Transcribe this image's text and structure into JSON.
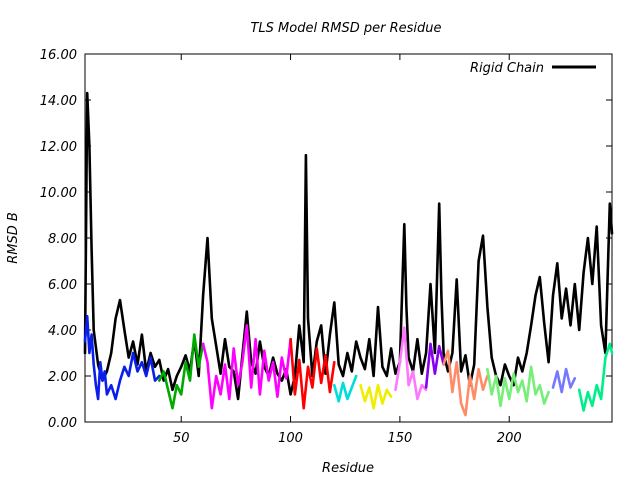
{
  "chart_data": {
    "type": "line",
    "title": "TLS Model RMSD per Residue",
    "xlabel": "Residue",
    "ylabel": "RMSD B",
    "xlim": [
      6,
      247
    ],
    "ylim": [
      0,
      16
    ],
    "xticks": [
      50,
      100,
      150,
      200
    ],
    "yticks": [
      "0.00",
      "2.00",
      "4.00",
      "6.00",
      "8.00",
      "10.00",
      "12.00",
      "14.00",
      "16.00"
    ],
    "grid": false,
    "legend": {
      "position": "top-right",
      "entries": [
        "Rigid Chain"
      ]
    },
    "series": [
      {
        "name": "Rigid Chain",
        "color": "#000000",
        "x": [
          6,
          7,
          8,
          9,
          10,
          12,
          14,
          16,
          18,
          20,
          22,
          24,
          26,
          28,
          30,
          32,
          34,
          36,
          38,
          40,
          42,
          44,
          46,
          48,
          50,
          52,
          54,
          56,
          58,
          60,
          62,
          64,
          66,
          68,
          70,
          72,
          74,
          76,
          78,
          80,
          82,
          84,
          86,
          88,
          90,
          92,
          94,
          96,
          98,
          100,
          102,
          104,
          106,
          107,
          108,
          110,
          112,
          114,
          116,
          118,
          120,
          122,
          124,
          126,
          128,
          130,
          132,
          134,
          136,
          138,
          140,
          142,
          144,
          146,
          148,
          150,
          152,
          153,
          154,
          156,
          158,
          160,
          162,
          164,
          166,
          168,
          169,
          170,
          172,
          174,
          176,
          178,
          180,
          182,
          184,
          186,
          188,
          190,
          192,
          194,
          196,
          198,
          200,
          202,
          204,
          206,
          208,
          210,
          212,
          214,
          216,
          218,
          220,
          222,
          224,
          226,
          228,
          230,
          232,
          234,
          236,
          238,
          240,
          242,
          244,
          246,
          247
        ],
        "y": [
          3.0,
          14.3,
          12.0,
          7.5,
          4.0,
          2.5,
          1.8,
          2.2,
          3.0,
          4.5,
          5.3,
          4.0,
          2.8,
          3.5,
          2.5,
          3.8,
          2.2,
          3.0,
          2.4,
          2.7,
          1.8,
          2.3,
          1.4,
          2.0,
          2.4,
          2.9,
          2.2,
          3.6,
          2.0,
          5.5,
          8.0,
          4.5,
          3.3,
          2.1,
          3.6,
          2.4,
          2.2,
          1.0,
          2.9,
          4.8,
          2.6,
          2.1,
          3.5,
          2.4,
          2.0,
          2.8,
          2.1,
          1.8,
          2.3,
          1.2,
          2.0,
          4.2,
          2.6,
          11.6,
          4.5,
          2.0,
          3.5,
          4.2,
          2.1,
          3.8,
          5.2,
          2.5,
          2.0,
          3.0,
          2.2,
          3.5,
          2.8,
          2.3,
          3.6,
          2.0,
          5.0,
          2.4,
          2.0,
          3.2,
          2.1,
          2.6,
          8.6,
          5.0,
          2.8,
          2.2,
          3.6,
          2.1,
          3.0,
          6.0,
          3.0,
          9.5,
          5.5,
          3.0,
          2.2,
          3.0,
          6.2,
          2.2,
          2.9,
          1.6,
          2.5,
          7.0,
          8.1,
          5.0,
          2.8,
          2.0,
          1.6,
          2.5,
          2.0,
          1.6,
          2.8,
          2.2,
          3.0,
          4.2,
          5.5,
          6.3,
          4.3,
          2.6,
          5.5,
          6.9,
          4.5,
          5.8,
          4.2,
          6.0,
          4.0,
          6.5,
          8.0,
          6.0,
          8.5,
          4.2,
          3.0,
          9.5,
          8.2
        ]
      },
      {
        "name": "",
        "color": "#0a1fe8",
        "x": [
          6,
          7,
          8,
          9,
          10,
          11,
          12,
          13,
          14,
          15,
          16,
          18,
          20,
          22,
          24,
          26,
          28,
          30,
          32,
          34,
          36,
          38,
          40
        ],
        "y": [
          3.5,
          4.6,
          3.0,
          3.8,
          2.5,
          1.6,
          1.0,
          2.6,
          1.8,
          2.2,
          1.2,
          1.6,
          1.0,
          1.8,
          2.4,
          2.0,
          3.0,
          2.2,
          2.6,
          2.0,
          2.8,
          1.8,
          2.0
        ]
      },
      {
        "name": "",
        "color": "#00aa00",
        "x": [
          40,
          42,
          44,
          46,
          48,
          50,
          52,
          54,
          56,
          58,
          60
        ],
        "y": [
          1.8,
          2.2,
          1.4,
          0.6,
          1.6,
          1.2,
          2.6,
          1.8,
          3.8,
          2.4,
          3.4
        ]
      },
      {
        "name": "",
        "color": "#ff00ff",
        "x": [
          60,
          62,
          64,
          66,
          68,
          70,
          72,
          74,
          76,
          78,
          80,
          82,
          84,
          86,
          88,
          90,
          92,
          94,
          96,
          98,
          100
        ],
        "y": [
          3.4,
          2.6,
          0.6,
          2.0,
          1.2,
          2.5,
          1.0,
          3.2,
          1.6,
          2.6,
          4.2,
          1.5,
          3.6,
          1.2,
          3.1,
          1.8,
          2.6,
          1.1,
          2.8,
          1.9,
          3.6
        ]
      },
      {
        "name": "",
        "color": "#ff0000",
        "x": [
          100,
          102,
          104,
          106,
          108,
          110,
          112,
          114,
          116,
          118,
          120
        ],
        "y": [
          3.6,
          1.2,
          2.7,
          0.6,
          2.4,
          1.5,
          3.2,
          1.7,
          2.9,
          1.3,
          2.6
        ]
      },
      {
        "name": "",
        "color": "#00dddd",
        "x": [
          120,
          122,
          124,
          126,
          128,
          130
        ],
        "y": [
          1.6,
          0.9,
          1.7,
          1.0,
          1.5,
          2.0
        ]
      },
      {
        "name": "",
        "color": "#eeee00",
        "x": [
          132,
          134,
          136,
          138,
          140,
          142,
          144,
          146
        ],
        "y": [
          1.6,
          0.9,
          1.5,
          0.6,
          1.6,
          0.8,
          1.4,
          1.1
        ]
      },
      {
        "name": "",
        "color": "#ff77ff",
        "x": [
          148,
          150,
          152,
          154,
          156,
          158,
          160,
          162
        ],
        "y": [
          1.4,
          2.6,
          4.1,
          1.6,
          2.2,
          1.0,
          1.6,
          1.4
        ]
      },
      {
        "name": "",
        "color": "#8800ee",
        "x": [
          162,
          164,
          166,
          168,
          170
        ],
        "y": [
          1.5,
          3.4,
          2.1,
          3.3,
          2.5
        ]
      },
      {
        "name": "",
        "color": "#ff8c69",
        "x": [
          170,
          172,
          174,
          176,
          178,
          180,
          182,
          184,
          186,
          188,
          190
        ],
        "y": [
          2.5,
          3.1,
          1.3,
          2.6,
          0.8,
          0.3,
          2.0,
          1.0,
          2.3,
          1.4,
          2.0
        ]
      },
      {
        "name": "",
        "color": "#77ee77",
        "x": [
          190,
          192,
          194,
          196,
          198,
          200,
          202,
          204,
          206,
          208,
          210,
          212,
          214,
          216,
          218
        ],
        "y": [
          2.3,
          1.2,
          2.0,
          0.7,
          1.9,
          1.0,
          2.1,
          1.3,
          1.8,
          0.9,
          2.4,
          1.2,
          1.6,
          0.8,
          1.3
        ]
      },
      {
        "name": "",
        "color": "#7777ff",
        "x": [
          220,
          222,
          224,
          226,
          228,
          230
        ],
        "y": [
          1.5,
          2.2,
          1.3,
          2.3,
          1.5,
          1.9
        ]
      },
      {
        "name": "",
        "color": "#00ee88",
        "x": [
          232,
          234,
          236,
          238,
          240,
          242,
          244,
          246,
          247
        ],
        "y": [
          1.4,
          0.5,
          1.3,
          0.7,
          1.6,
          1.0,
          2.8,
          3.4,
          3.0
        ]
      }
    ]
  }
}
